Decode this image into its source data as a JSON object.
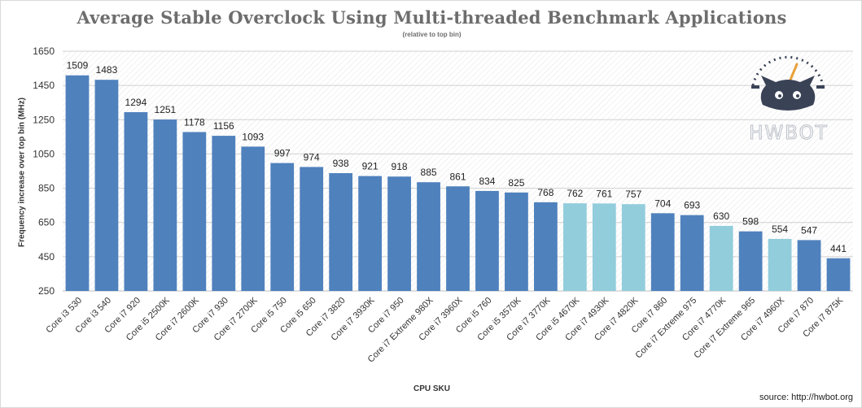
{
  "chart_data": {
    "type": "bar",
    "title": "Average Stable Overclock Using Multi-threaded Benchmark Applications",
    "subtitle": "(relative to top bin)",
    "xlabel": "CPU SKU",
    "ylabel": "Frequency increase over top bin (MHz)",
    "ylim": [
      250,
      1650
    ],
    "yticks": [
      250,
      450,
      650,
      850,
      1050,
      1250,
      1450,
      1650
    ],
    "grid": true,
    "categories": [
      "Core i3 530",
      "Core i3 540",
      "Core i7 920",
      "Core i5 2500K",
      "Core i7 2600K",
      "Core i7 930",
      "Core i7 2700K",
      "Core i5 750",
      "Core i5 650",
      "Core i7 3820",
      "Core i7 3930K",
      "Core i7 950",
      "Core i7 Extreme 980X",
      "Core i7 3960X",
      "Core i5 760",
      "Core i5 3570K",
      "Core i7 3770K",
      "Core i5 4670K",
      "Core i7 4930K",
      "Core i7 4820K",
      "Core i7 860",
      "Core i7 Extreme 975",
      "Core i7 4770K",
      "Core i7 Extreme 965",
      "Core i7 4960X",
      "Core i7 870",
      "Core i7 875K"
    ],
    "values": [
      1509,
      1483,
      1294,
      1251,
      1178,
      1156,
      1093,
      997,
      974,
      938,
      921,
      918,
      885,
      861,
      834,
      825,
      768,
      762,
      761,
      757,
      704,
      693,
      630,
      598,
      554,
      547,
      441
    ],
    "highlighted": [
      "Core i5 4670K",
      "Core i7 4930K",
      "Core i7 4820K",
      "Core i7 4770K",
      "Core i7 4960X"
    ],
    "colors": {
      "bar": "#4f81bd",
      "highlight": "#92cddc"
    }
  },
  "logo": {
    "text": "HWBOT"
  },
  "source": "source: http://hwbot.org"
}
